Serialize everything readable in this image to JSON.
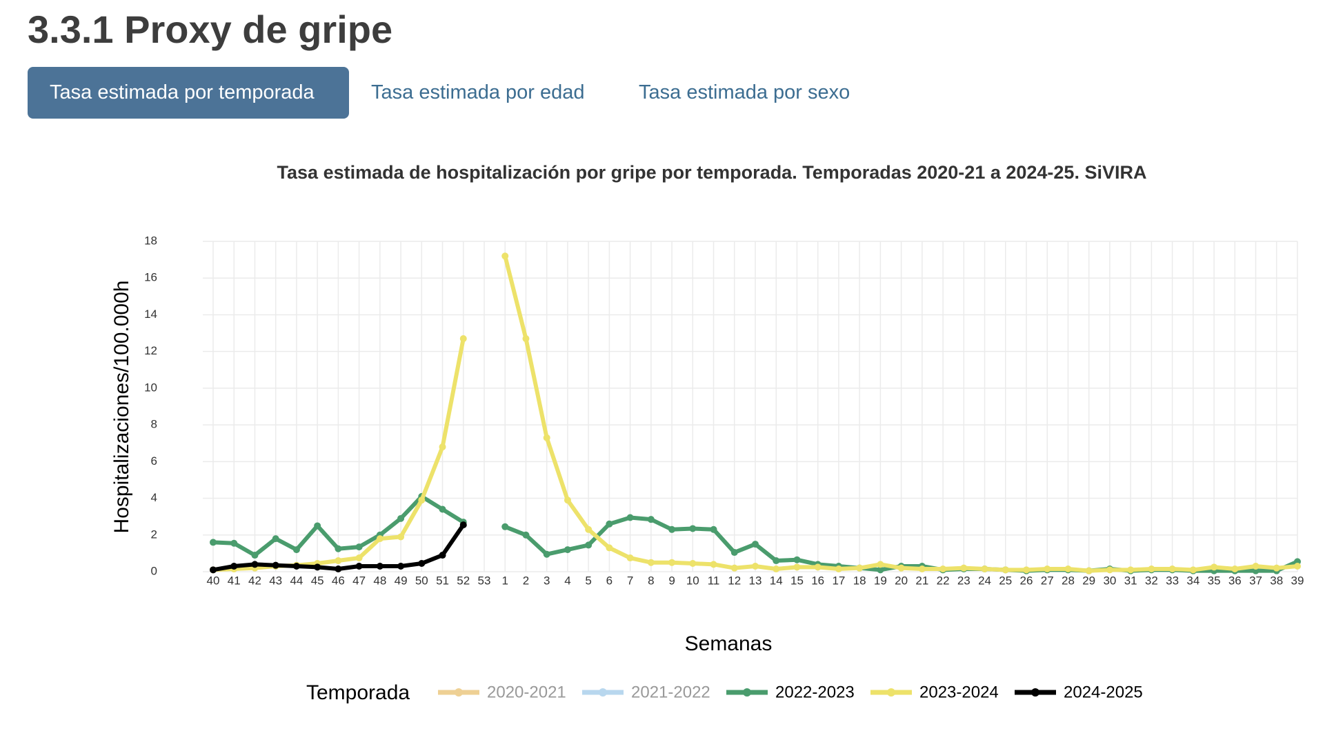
{
  "header": {
    "title": "3.3.1 Proxy de gripe"
  },
  "tabs": [
    {
      "label": "Tasa estimada por temporada",
      "active": true
    },
    {
      "label": "Tasa estimada por edad",
      "active": false
    },
    {
      "label": "Tasa estimada por sexo",
      "active": false
    }
  ],
  "chart_data": {
    "type": "line",
    "title": "Tasa estimada de hospitalización por gripe por temporada. Temporadas 2020-21 a 2024-25. SiVIRA",
    "x_label": "Semanas",
    "y_label": "Hospitalizaciones/100.000h",
    "legend_title": "Temporada",
    "grid": true,
    "ylim": [
      0,
      18
    ],
    "yticks": [
      0,
      2,
      4,
      6,
      8,
      10,
      12,
      14,
      16,
      18
    ],
    "categories": [
      "40",
      "41",
      "42",
      "43",
      "44",
      "45",
      "46",
      "47",
      "48",
      "49",
      "50",
      "51",
      "52",
      "53",
      "1",
      "2",
      "3",
      "4",
      "5",
      "6",
      "7",
      "8",
      "9",
      "10",
      "11",
      "12",
      "13",
      "14",
      "15",
      "16",
      "17",
      "18",
      "19",
      "20",
      "21",
      "22",
      "23",
      "24",
      "25",
      "26",
      "27",
      "28",
      "29",
      "30",
      "31",
      "32",
      "33",
      "34",
      "35",
      "36",
      "37",
      "38",
      "39"
    ],
    "series": [
      {
        "name": "2020-2021",
        "color": "#eed094",
        "hidden": true,
        "values": [
          null,
          null,
          null,
          null,
          null,
          null,
          null,
          null,
          null,
          null,
          null,
          null,
          null,
          null,
          null,
          null,
          null,
          null,
          null,
          null,
          null,
          null,
          null,
          null,
          null,
          null,
          null,
          null,
          null,
          null,
          null,
          null,
          null,
          null,
          null,
          null,
          null,
          null,
          null,
          null,
          null,
          null,
          null,
          null,
          null,
          null,
          null,
          null,
          null,
          null,
          null,
          null,
          null
        ]
      },
      {
        "name": "2021-2022",
        "color": "#b8d7ee",
        "hidden": true,
        "values": [
          null,
          null,
          null,
          null,
          null,
          null,
          null,
          null,
          null,
          null,
          null,
          null,
          null,
          null,
          null,
          null,
          null,
          null,
          null,
          null,
          null,
          null,
          null,
          null,
          null,
          null,
          null,
          null,
          null,
          null,
          null,
          null,
          null,
          null,
          null,
          null,
          null,
          null,
          null,
          null,
          null,
          null,
          null,
          null,
          null,
          null,
          null,
          null,
          null,
          null,
          null,
          null,
          null
        ]
      },
      {
        "name": "2022-2023",
        "color": "#4a9c6d",
        "hidden": false,
        "values": [
          1.6,
          1.55,
          0.9,
          1.8,
          1.2,
          2.5,
          1.25,
          1.35,
          2.0,
          2.9,
          4.1,
          3.4,
          2.7,
          null,
          2.45,
          2.0,
          0.95,
          1.2,
          1.45,
          2.6,
          2.95,
          2.85,
          2.3,
          2.35,
          2.3,
          1.05,
          1.5,
          0.6,
          0.65,
          0.4,
          0.3,
          0.2,
          0.1,
          0.3,
          0.3,
          0.1,
          0.15,
          0.15,
          0.1,
          0.05,
          0.1,
          0.1,
          0.05,
          0.15,
          0.05,
          0.1,
          0.1,
          0.05,
          0.05,
          0.05,
          0.05,
          0.05,
          0.55
        ]
      },
      {
        "name": "2023-2024",
        "color": "#ede26a",
        "hidden": false,
        "values": [
          0.1,
          0.15,
          0.2,
          0.3,
          0.35,
          0.45,
          0.6,
          0.75,
          1.8,
          1.9,
          3.9,
          6.8,
          12.7,
          null,
          17.2,
          12.7,
          7.3,
          3.9,
          2.3,
          1.3,
          0.75,
          0.5,
          0.5,
          0.45,
          0.4,
          0.2,
          0.3,
          0.15,
          0.25,
          0.25,
          0.15,
          0.2,
          0.4,
          0.2,
          0.15,
          0.15,
          0.2,
          0.15,
          0.1,
          0.1,
          0.15,
          0.15,
          0.05,
          0.1,
          0.1,
          0.15,
          0.15,
          0.1,
          0.25,
          0.15,
          0.3,
          0.2,
          0.3
        ]
      },
      {
        "name": "2024-2025",
        "color": "#000000",
        "hidden": false,
        "values": [
          0.1,
          0.3,
          0.4,
          0.35,
          0.3,
          0.25,
          0.15,
          0.3,
          0.3,
          0.3,
          0.45,
          0.9,
          2.55,
          null,
          null,
          null,
          null,
          null,
          null,
          null,
          null,
          null,
          null,
          null,
          null,
          null,
          null,
          null,
          null,
          null,
          null,
          null,
          null,
          null,
          null,
          null,
          null,
          null,
          null,
          null,
          null,
          null,
          null,
          null,
          null,
          null,
          null,
          null,
          null,
          null,
          null,
          null,
          null
        ]
      }
    ]
  }
}
